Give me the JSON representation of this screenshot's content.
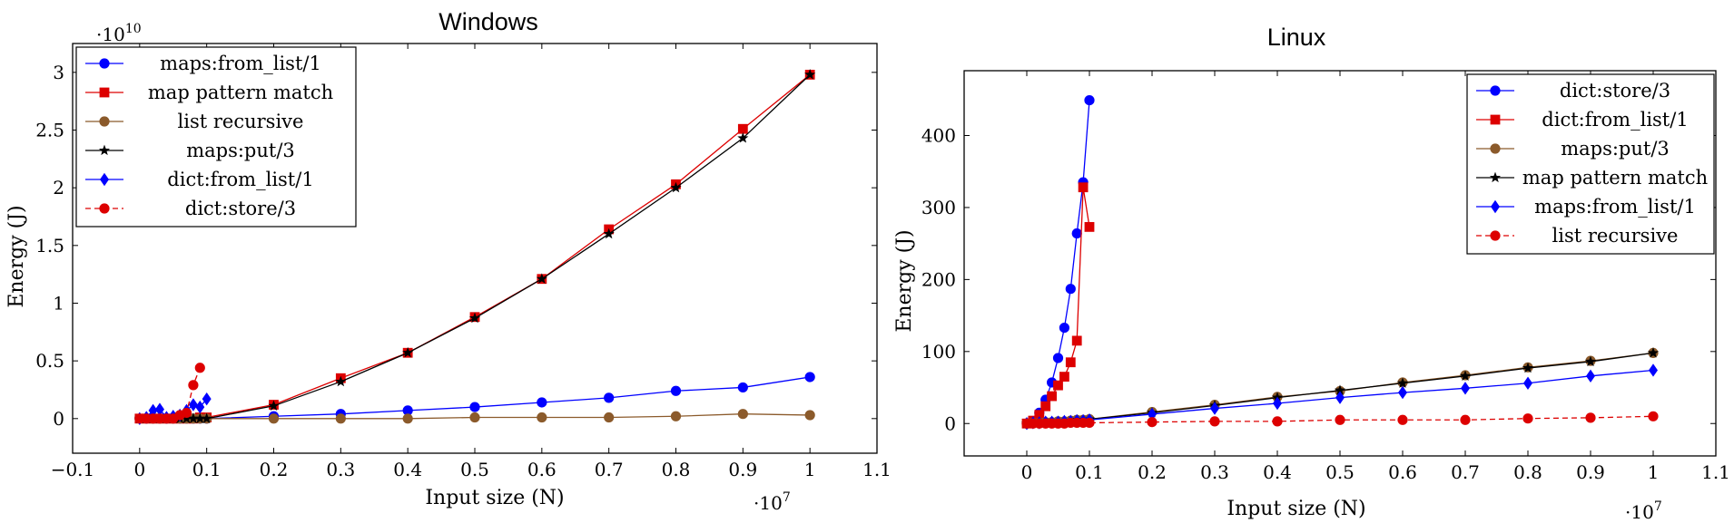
{
  "chart_data": [
    {
      "type": "line",
      "title": "Windows",
      "xlabel": "Input size (N)",
      "ylabel": "Energy (J)",
      "x_multiplier": "·10",
      "x_multiplier_exp": "7",
      "y_multiplier": "·10",
      "y_multiplier_exp": "10",
      "xlim": [
        -0.1,
        1.1
      ],
      "ylim": [
        -0.3,
        3.25
      ],
      "xticks": [
        -0.1,
        0,
        0.1,
        0.2,
        0.3,
        0.4,
        0.5,
        0.6,
        0.7,
        0.8,
        0.9,
        1,
        1.1
      ],
      "xtick_labels": [
        "−0.1",
        "0",
        "0.1",
        "0.2",
        "0.3",
        "0.4",
        "0.5",
        "0.6",
        "0.7",
        "0.8",
        "0.9",
        "1",
        "1.1"
      ],
      "yticks": [
        0,
        0.5,
        1,
        1.5,
        2,
        2.5,
        3
      ],
      "ytick_labels": [
        "0",
        "0.5",
        "1",
        "1.5",
        "2",
        "2.5",
        "3"
      ],
      "legend_position": "top-left",
      "series": [
        {
          "name": "maps:from_list/1",
          "color": "#0000ff",
          "marker": "circle",
          "dash": false,
          "x": [
            0,
            0.01,
            0.02,
            0.03,
            0.04,
            0.05,
            0.06,
            0.07,
            0.08,
            0.09,
            0.1,
            0.2,
            0.3,
            0.4,
            0.5,
            0.6,
            0.7,
            0.8,
            0.9,
            1
          ],
          "y": [
            0,
            0,
            0,
            0,
            0,
            0,
            0,
            0,
            0,
            0,
            0,
            0.02,
            0.04,
            0.07,
            0.1,
            0.14,
            0.18,
            0.24,
            0.27,
            0.36
          ]
        },
        {
          "name": "map pattern match",
          "color": "#dd0000",
          "marker": "square",
          "dash": false,
          "x": [
            0,
            0.01,
            0.02,
            0.03,
            0.04,
            0.05,
            0.06,
            0.07,
            0.08,
            0.09,
            0.1,
            0.2,
            0.3,
            0.4,
            0.5,
            0.6,
            0.7,
            0.8,
            0.9,
            1
          ],
          "y": [
            0,
            0,
            0,
            0,
            0,
            0,
            0,
            0,
            0,
            0.01,
            0.01,
            0.12,
            0.35,
            0.57,
            0.88,
            1.21,
            1.64,
            2.03,
            2.51,
            2.98
          ]
        },
        {
          "name": "list recursive",
          "color": "#8b5a2b",
          "marker": "circle",
          "dash": false,
          "x": [
            0,
            0.01,
            0.02,
            0.03,
            0.04,
            0.05,
            0.06,
            0.07,
            0.08,
            0.09,
            0.1,
            0.2,
            0.3,
            0.4,
            0.5,
            0.6,
            0.7,
            0.8,
            0.9,
            1
          ],
          "y": [
            0,
            0,
            0,
            0,
            0,
            0,
            0,
            0,
            0,
            0,
            0,
            0,
            0,
            0,
            0.01,
            0.01,
            0.01,
            0.02,
            0.04,
            0.03
          ]
        },
        {
          "name": "maps:put/3",
          "color": "#000000",
          "marker": "star",
          "dash": false,
          "x": [
            0,
            0.01,
            0.02,
            0.03,
            0.04,
            0.05,
            0.06,
            0.07,
            0.08,
            0.09,
            0.1,
            0.2,
            0.3,
            0.4,
            0.5,
            0.6,
            0.7,
            0.8,
            0.9,
            1
          ],
          "y": [
            0,
            0,
            0,
            0,
            0,
            0,
            0,
            0,
            0,
            0,
            0,
            0.11,
            0.32,
            0.57,
            0.87,
            1.21,
            1.6,
            2.0,
            2.43,
            2.98
          ]
        },
        {
          "name": "dict:from_list/1",
          "color": "#0000ff",
          "marker": "diamond",
          "dash": false,
          "x": [
            0,
            0.01,
            0.02,
            0.03,
            0.04,
            0.05,
            0.06,
            0.07,
            0.08,
            0.09,
            0.1
          ],
          "y": [
            0,
            0.01,
            0.07,
            0.08,
            0.01,
            0.02,
            0.03,
            0.07,
            0.12,
            0.1,
            0.17
          ]
        },
        {
          "name": "dict:store/3",
          "color": "#dd0000",
          "marker": "circle",
          "dash": true,
          "x": [
            0,
            0.01,
            0.02,
            0.03,
            0.04,
            0.05,
            0.06,
            0.07,
            0.08,
            0.09
          ],
          "y": [
            0,
            0,
            0,
            0,
            0,
            0,
            0.03,
            0.05,
            0.29,
            0.44
          ]
        }
      ]
    },
    {
      "type": "line",
      "title": "Linux",
      "xlabel": "Input size (N)",
      "ylabel": "Energy (J)",
      "x_multiplier": "·10",
      "x_multiplier_exp": "7",
      "xlim": [
        -0.1,
        1.1
      ],
      "ylim": [
        -45,
        490
      ],
      "xticks": [
        0,
        0.1,
        0.2,
        0.3,
        0.4,
        0.5,
        0.6,
        0.7,
        0.8,
        0.9,
        1,
        1.1
      ],
      "xtick_labels": [
        "0",
        "0.1",
        "0.2",
        "0.3",
        "0.4",
        "0.5",
        "0.6",
        "0.7",
        "0.8",
        "0.9",
        "1",
        "1.1"
      ],
      "yticks": [
        0,
        100,
        200,
        300,
        400
      ],
      "ytick_labels": [
        "0",
        "100",
        "200",
        "300",
        "400"
      ],
      "legend_position": "top-right",
      "series": [
        {
          "name": "dict:store/3",
          "color": "#0000ff",
          "marker": "circle",
          "dash": false,
          "x": [
            0,
            0.01,
            0.02,
            0.03,
            0.04,
            0.05,
            0.06,
            0.07,
            0.08,
            0.09,
            0.1
          ],
          "y": [
            0,
            3,
            15,
            33,
            57,
            91,
            133,
            187,
            264,
            335,
            449
          ]
        },
        {
          "name": "dict:from_list/1",
          "color": "#dd0000",
          "marker": "square",
          "dash": false,
          "x": [
            0,
            0.01,
            0.02,
            0.03,
            0.04,
            0.05,
            0.06,
            0.07,
            0.08,
            0.09,
            0.1
          ],
          "y": [
            0,
            4,
            12,
            24,
            38,
            53,
            65,
            85,
            115,
            328,
            273
          ]
        },
        {
          "name": "maps:put/3",
          "color": "#8b5a2b",
          "marker": "circle",
          "dash": false,
          "x": [
            0,
            0.01,
            0.02,
            0.03,
            0.04,
            0.05,
            0.06,
            0.07,
            0.08,
            0.09,
            0.1,
            0.2,
            0.3,
            0.4,
            0.5,
            0.6,
            0.7,
            0.8,
            0.9,
            1
          ],
          "y": [
            0,
            1,
            1,
            2,
            2,
            3,
            3,
            4,
            5,
            5,
            6,
            16,
            26,
            37,
            45,
            57,
            67,
            78,
            87,
            98
          ]
        },
        {
          "name": "map pattern match",
          "color": "#000000",
          "marker": "star",
          "dash": false,
          "x": [
            0,
            0.01,
            0.02,
            0.03,
            0.04,
            0.05,
            0.06,
            0.07,
            0.08,
            0.09,
            0.1,
            0.2,
            0.3,
            0.4,
            0.5,
            0.6,
            0.7,
            0.8,
            0.9,
            1
          ],
          "y": [
            0,
            1,
            1,
            2,
            2,
            3,
            3,
            4,
            5,
            5,
            6,
            15,
            25,
            36,
            46,
            56,
            66,
            77,
            86,
            98
          ]
        },
        {
          "name": "maps:from_list/1",
          "color": "#0000ff",
          "marker": "diamond",
          "dash": false,
          "x": [
            0,
            0.01,
            0.02,
            0.03,
            0.04,
            0.05,
            0.06,
            0.07,
            0.08,
            0.09,
            0.1,
            0.2,
            0.3,
            0.4,
            0.5,
            0.6,
            0.7,
            0.8,
            0.9,
            1
          ],
          "y": [
            0,
            1,
            1,
            2,
            2,
            2,
            3,
            3,
            4,
            4,
            5,
            13,
            21,
            28,
            36,
            43,
            49,
            56,
            66,
            74
          ]
        },
        {
          "name": "list recursive",
          "color": "#dd0000",
          "marker": "circle",
          "dash": true,
          "x": [
            0,
            0.01,
            0.02,
            0.03,
            0.04,
            0.05,
            0.06,
            0.07,
            0.08,
            0.09,
            0.1,
            0.2,
            0.3,
            0.4,
            0.5,
            0.6,
            0.7,
            0.8,
            0.9,
            1
          ],
          "y": [
            0,
            0,
            0,
            0,
            0,
            0,
            0,
            1,
            1,
            1,
            1,
            2,
            3,
            3,
            5,
            5,
            5,
            7,
            8,
            10
          ]
        }
      ]
    }
  ]
}
